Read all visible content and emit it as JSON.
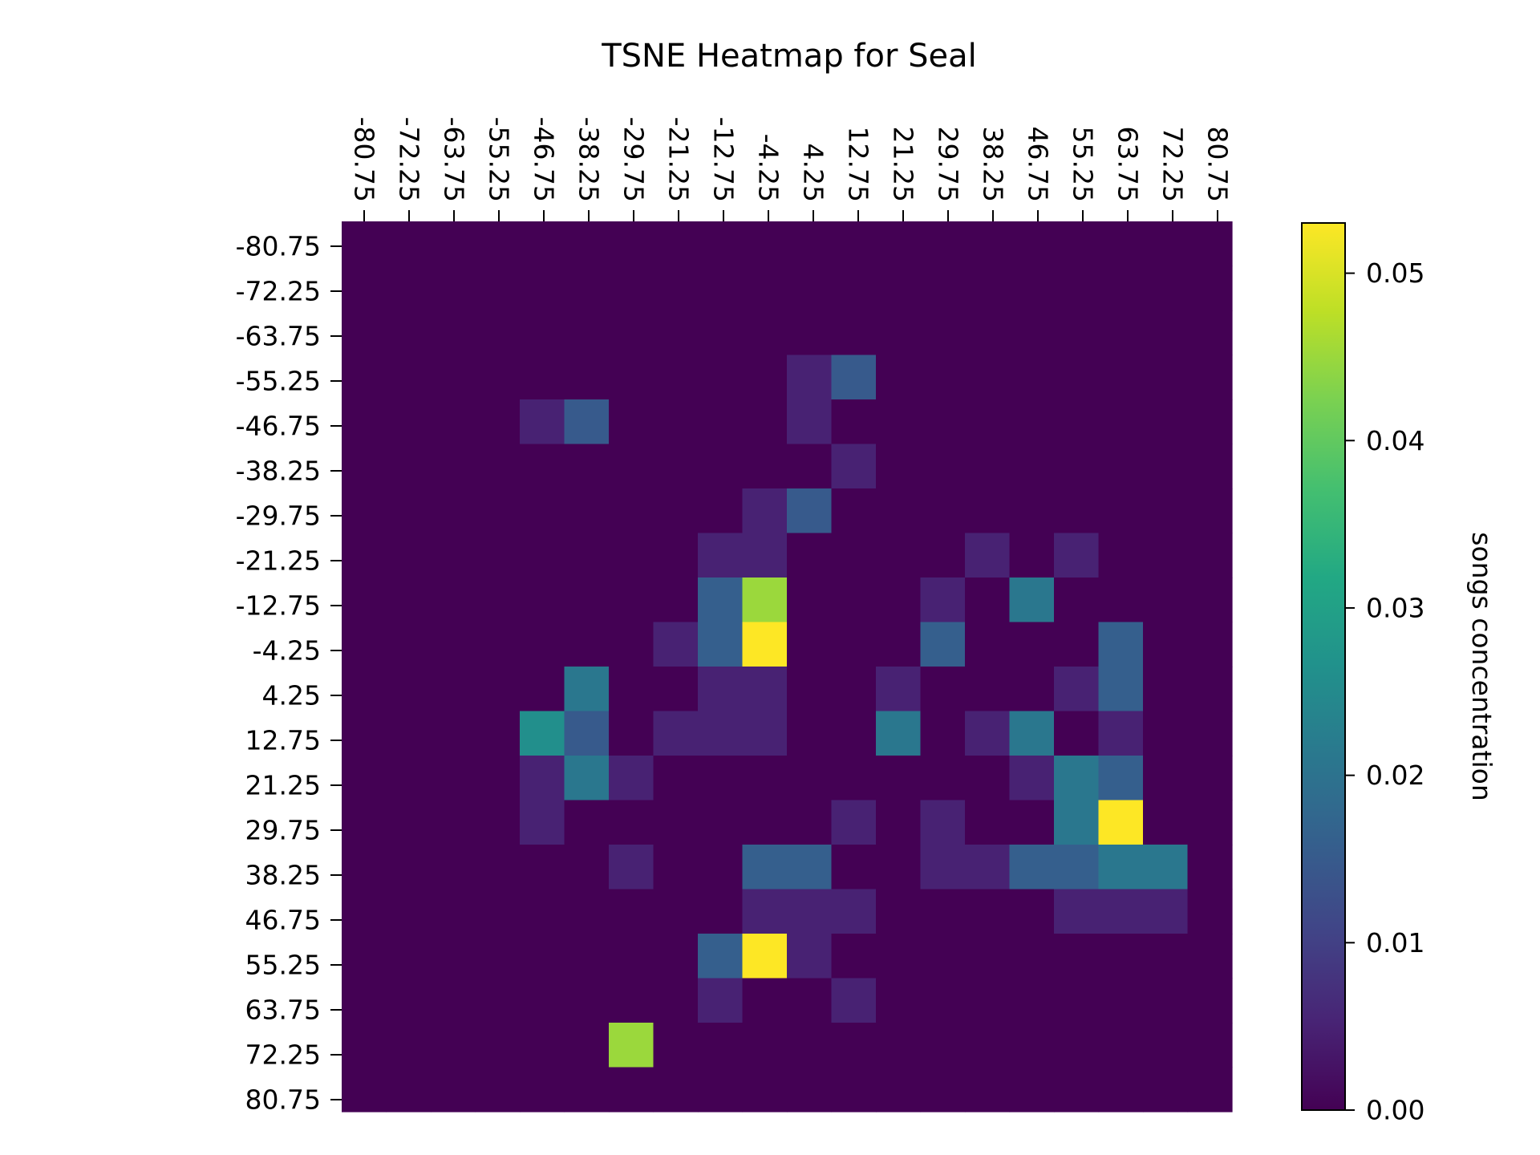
{
  "chart_data": {
    "type": "heatmap",
    "title": "TSNE Heatmap for Seal",
    "x_ticks": [
      "-80.75",
      "-72.25",
      "-63.75",
      "-55.25",
      "-46.75",
      "-38.25",
      "-29.75",
      "-21.25",
      "-12.75",
      "-4.25",
      "4.25",
      "12.75",
      "21.25",
      "29.75",
      "38.25",
      "46.75",
      "55.25",
      "63.75",
      "72.25",
      "80.75"
    ],
    "y_ticks": [
      "-80.75",
      "-72.25",
      "-63.75",
      "-55.25",
      "-46.75",
      "-38.25",
      "-29.75",
      "-21.25",
      "-12.75",
      "-4.25",
      "4.25",
      "12.75",
      "21.25",
      "29.75",
      "38.25",
      "46.75",
      "55.25",
      "63.75",
      "72.25",
      "80.75"
    ],
    "values": [
      [
        0,
        0,
        0,
        0,
        0,
        0,
        0,
        0,
        0,
        0,
        0,
        0,
        0,
        0,
        0,
        0,
        0,
        0,
        0,
        0
      ],
      [
        0,
        0,
        0,
        0,
        0,
        0,
        0,
        0,
        0,
        0,
        0,
        0,
        0,
        0,
        0,
        0,
        0,
        0,
        0,
        0
      ],
      [
        0,
        0,
        0,
        0,
        0,
        0,
        0,
        0,
        0,
        0,
        0,
        0,
        0,
        0,
        0,
        0,
        0,
        0,
        0,
        0
      ],
      [
        0,
        0,
        0,
        0,
        0,
        0,
        0,
        0,
        0,
        0,
        0.005,
        0.015,
        0,
        0,
        0,
        0,
        0,
        0,
        0,
        0
      ],
      [
        0,
        0,
        0,
        0,
        0.005,
        0.015,
        0,
        0,
        0,
        0,
        0.005,
        0,
        0,
        0,
        0,
        0,
        0,
        0,
        0,
        0
      ],
      [
        0,
        0,
        0,
        0,
        0,
        0,
        0,
        0,
        0,
        0,
        0,
        0.005,
        0,
        0,
        0,
        0,
        0,
        0,
        0,
        0
      ],
      [
        0,
        0,
        0,
        0,
        0,
        0,
        0,
        0,
        0,
        0.005,
        0.015,
        0,
        0,
        0,
        0,
        0,
        0,
        0,
        0,
        0
      ],
      [
        0,
        0,
        0,
        0,
        0,
        0,
        0,
        0,
        0.005,
        0.005,
        0,
        0,
        0,
        0,
        0.005,
        0,
        0.005,
        0,
        0,
        0
      ],
      [
        0,
        0,
        0,
        0,
        0,
        0,
        0,
        0,
        0.016,
        0.045,
        0,
        0,
        0,
        0.005,
        0,
        0.021,
        0,
        0,
        0,
        0
      ],
      [
        0,
        0,
        0,
        0,
        0,
        0,
        0,
        0.005,
        0.016,
        0.053,
        0,
        0,
        0,
        0.016,
        0,
        0,
        0,
        0.016,
        0,
        0
      ],
      [
        0,
        0,
        0,
        0,
        0,
        0.021,
        0,
        0,
        0.005,
        0.005,
        0,
        0,
        0.005,
        0,
        0,
        0,
        0.005,
        0.016,
        0,
        0
      ],
      [
        0,
        0,
        0,
        0,
        0.026,
        0.015,
        0,
        0.005,
        0.005,
        0.005,
        0,
        0,
        0.021,
        0,
        0.005,
        0.021,
        0,
        0.005,
        0,
        0
      ],
      [
        0,
        0,
        0,
        0,
        0.005,
        0.021,
        0.005,
        0,
        0,
        0,
        0,
        0,
        0,
        0,
        0,
        0.005,
        0.021,
        0.016,
        0,
        0
      ],
      [
        0,
        0,
        0,
        0,
        0.005,
        0,
        0,
        0,
        0,
        0,
        0,
        0.005,
        0,
        0.005,
        0,
        0,
        0.021,
        0.053,
        0,
        0
      ],
      [
        0,
        0,
        0,
        0,
        0,
        0,
        0.005,
        0,
        0,
        0.016,
        0.016,
        0,
        0,
        0.005,
        0.005,
        0.016,
        0.016,
        0.021,
        0.021,
        0
      ],
      [
        0,
        0,
        0,
        0,
        0,
        0,
        0,
        0,
        0,
        0.005,
        0.005,
        0.005,
        0,
        0,
        0,
        0,
        0.005,
        0.005,
        0.005,
        0
      ],
      [
        0,
        0,
        0,
        0,
        0,
        0,
        0,
        0,
        0.016,
        0.053,
        0.005,
        0,
        0,
        0,
        0,
        0,
        0,
        0,
        0,
        0
      ],
      [
        0,
        0,
        0,
        0,
        0,
        0,
        0,
        0,
        0.005,
        0,
        0,
        0.005,
        0,
        0,
        0,
        0,
        0,
        0,
        0,
        0
      ],
      [
        0,
        0,
        0,
        0,
        0,
        0,
        0.045,
        0,
        0,
        0,
        0,
        0,
        0,
        0,
        0,
        0,
        0,
        0,
        0,
        0
      ],
      [
        0,
        0,
        0,
        0,
        0,
        0,
        0,
        0,
        0,
        0,
        0,
        0,
        0,
        0,
        0,
        0,
        0,
        0,
        0,
        0
      ]
    ],
    "colorbar": {
      "label": "songs concentration",
      "ticks": [
        "0.00",
        "0.01",
        "0.02",
        "0.03",
        "0.04",
        "0.05"
      ],
      "tick_values": [
        0,
        0.01,
        0.02,
        0.03,
        0.04,
        0.05
      ],
      "range": [
        0,
        0.053
      ],
      "colormap": "viridis"
    },
    "x_axis_position": "top",
    "grid": false
  }
}
